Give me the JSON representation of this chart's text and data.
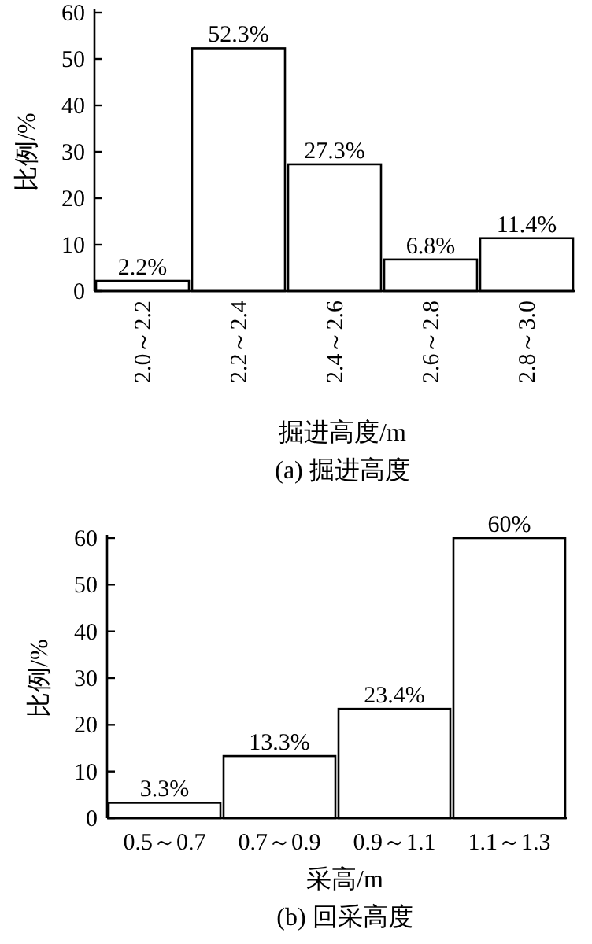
{
  "chart_data": [
    {
      "type": "bar",
      "categories": [
        "2.0～2.2",
        "2.2～2.4",
        "2.4～2.6",
        "2.6～2.8",
        "2.8～3.0"
      ],
      "values": [
        2.2,
        52.3,
        27.3,
        6.8,
        11.4
      ],
      "value_labels": [
        "2.2%",
        "52.3%",
        "27.3%",
        "6.8%",
        "11.4%"
      ],
      "color": "#ffffff",
      "ylim": [
        0,
        60
      ],
      "yticks": [
        0,
        10,
        20,
        30,
        40,
        50,
        60
      ],
      "xlabel": "掘进高度/m",
      "ylabel": "比例/%",
      "annotations": [
        "(a) 掘进高度"
      ]
    },
    {
      "type": "bar",
      "categories": [
        "0.5～0.7",
        "0.7～0.9",
        "0.9～1.1",
        "1.1～1.3"
      ],
      "values": [
        3.3,
        13.3,
        23.4,
        60
      ],
      "value_labels": [
        "3.3%",
        "13.3%",
        "23.4%",
        "60%"
      ],
      "color": "#ffffff",
      "ylim": [
        0,
        60
      ],
      "yticks": [
        0,
        10,
        20,
        30,
        40,
        50,
        60
      ],
      "xlabel": "采高/m",
      "ylabel": "比例/%",
      "annotations": [
        "(b) 回采高度"
      ]
    }
  ]
}
